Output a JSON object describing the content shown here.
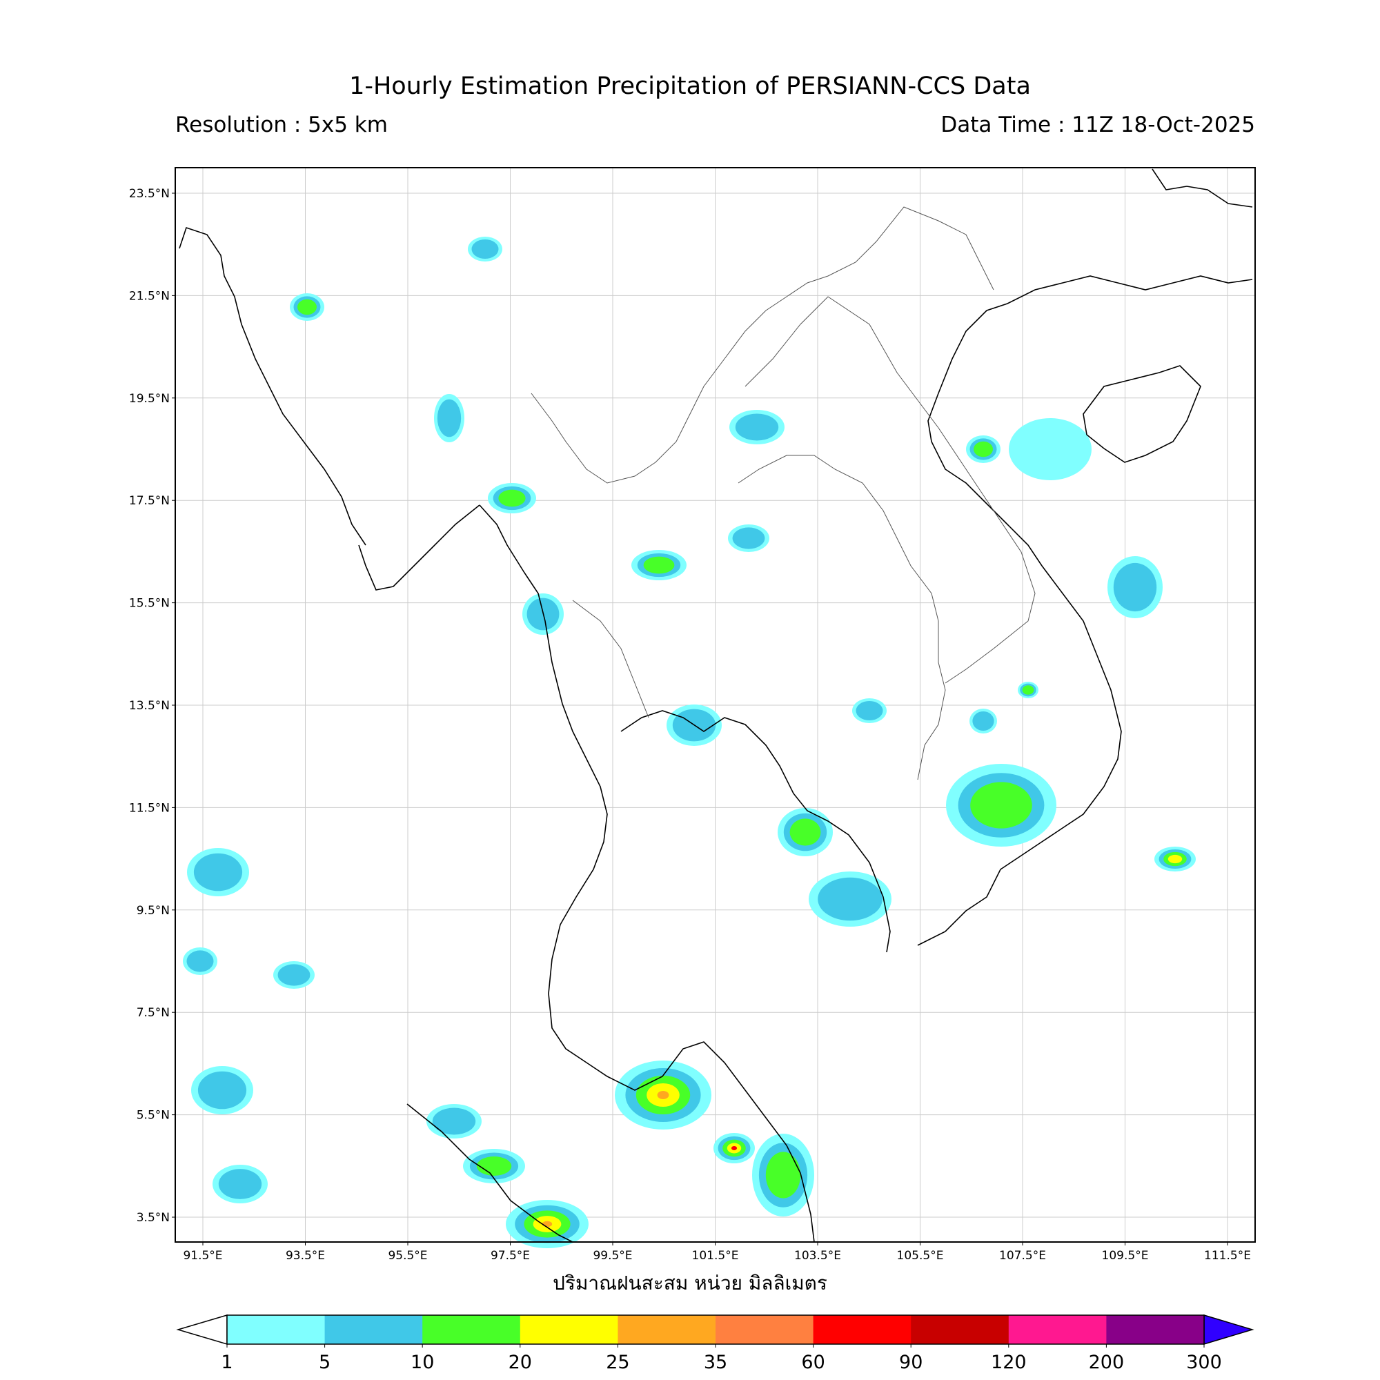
{
  "title": "1-Hourly Estimation Precipitation of PERSIANN-CCS Data",
  "resolution": "Resolution : 5x5 km",
  "data_time": "Data Time : 11Z 18-Oct-2025",
  "map": {
    "lat_ticks": [
      "23.5°N",
      "21.5°N",
      "19.5°N",
      "17.5°N",
      "15.5°N",
      "13.5°N",
      "11.5°N",
      "9.5°N",
      "7.5°N",
      "5.5°N",
      "3.5°N"
    ],
    "lon_ticks": [
      "91.5°E",
      "93.5°E",
      "95.5°E",
      "97.5°E",
      "99.5°E",
      "101.5°E",
      "103.5°E",
      "105.5°E",
      "107.5°E",
      "109.5°E",
      "111.5°E"
    ],
    "lon_range": [
      91,
      112
    ],
    "lat_range": [
      3,
      24
    ],
    "grid": true
  },
  "colorbar": {
    "label": "ปริมาณฝนสะสม หน่วย มิลลิเมตร",
    "ticks": [
      "1",
      "5",
      "10",
      "20",
      "25",
      "35",
      "60",
      "90",
      "120",
      "200",
      "300"
    ],
    "colors": [
      "#80ffff",
      "#40c8e8",
      "#48ff28",
      "#ffff00",
      "#ffa820",
      "#ff8040",
      "#ff0000",
      "#c80000",
      "#ff1890",
      "#880088"
    ],
    "under_color": "#ffffff",
    "over_color": "#3000ff"
  }
}
